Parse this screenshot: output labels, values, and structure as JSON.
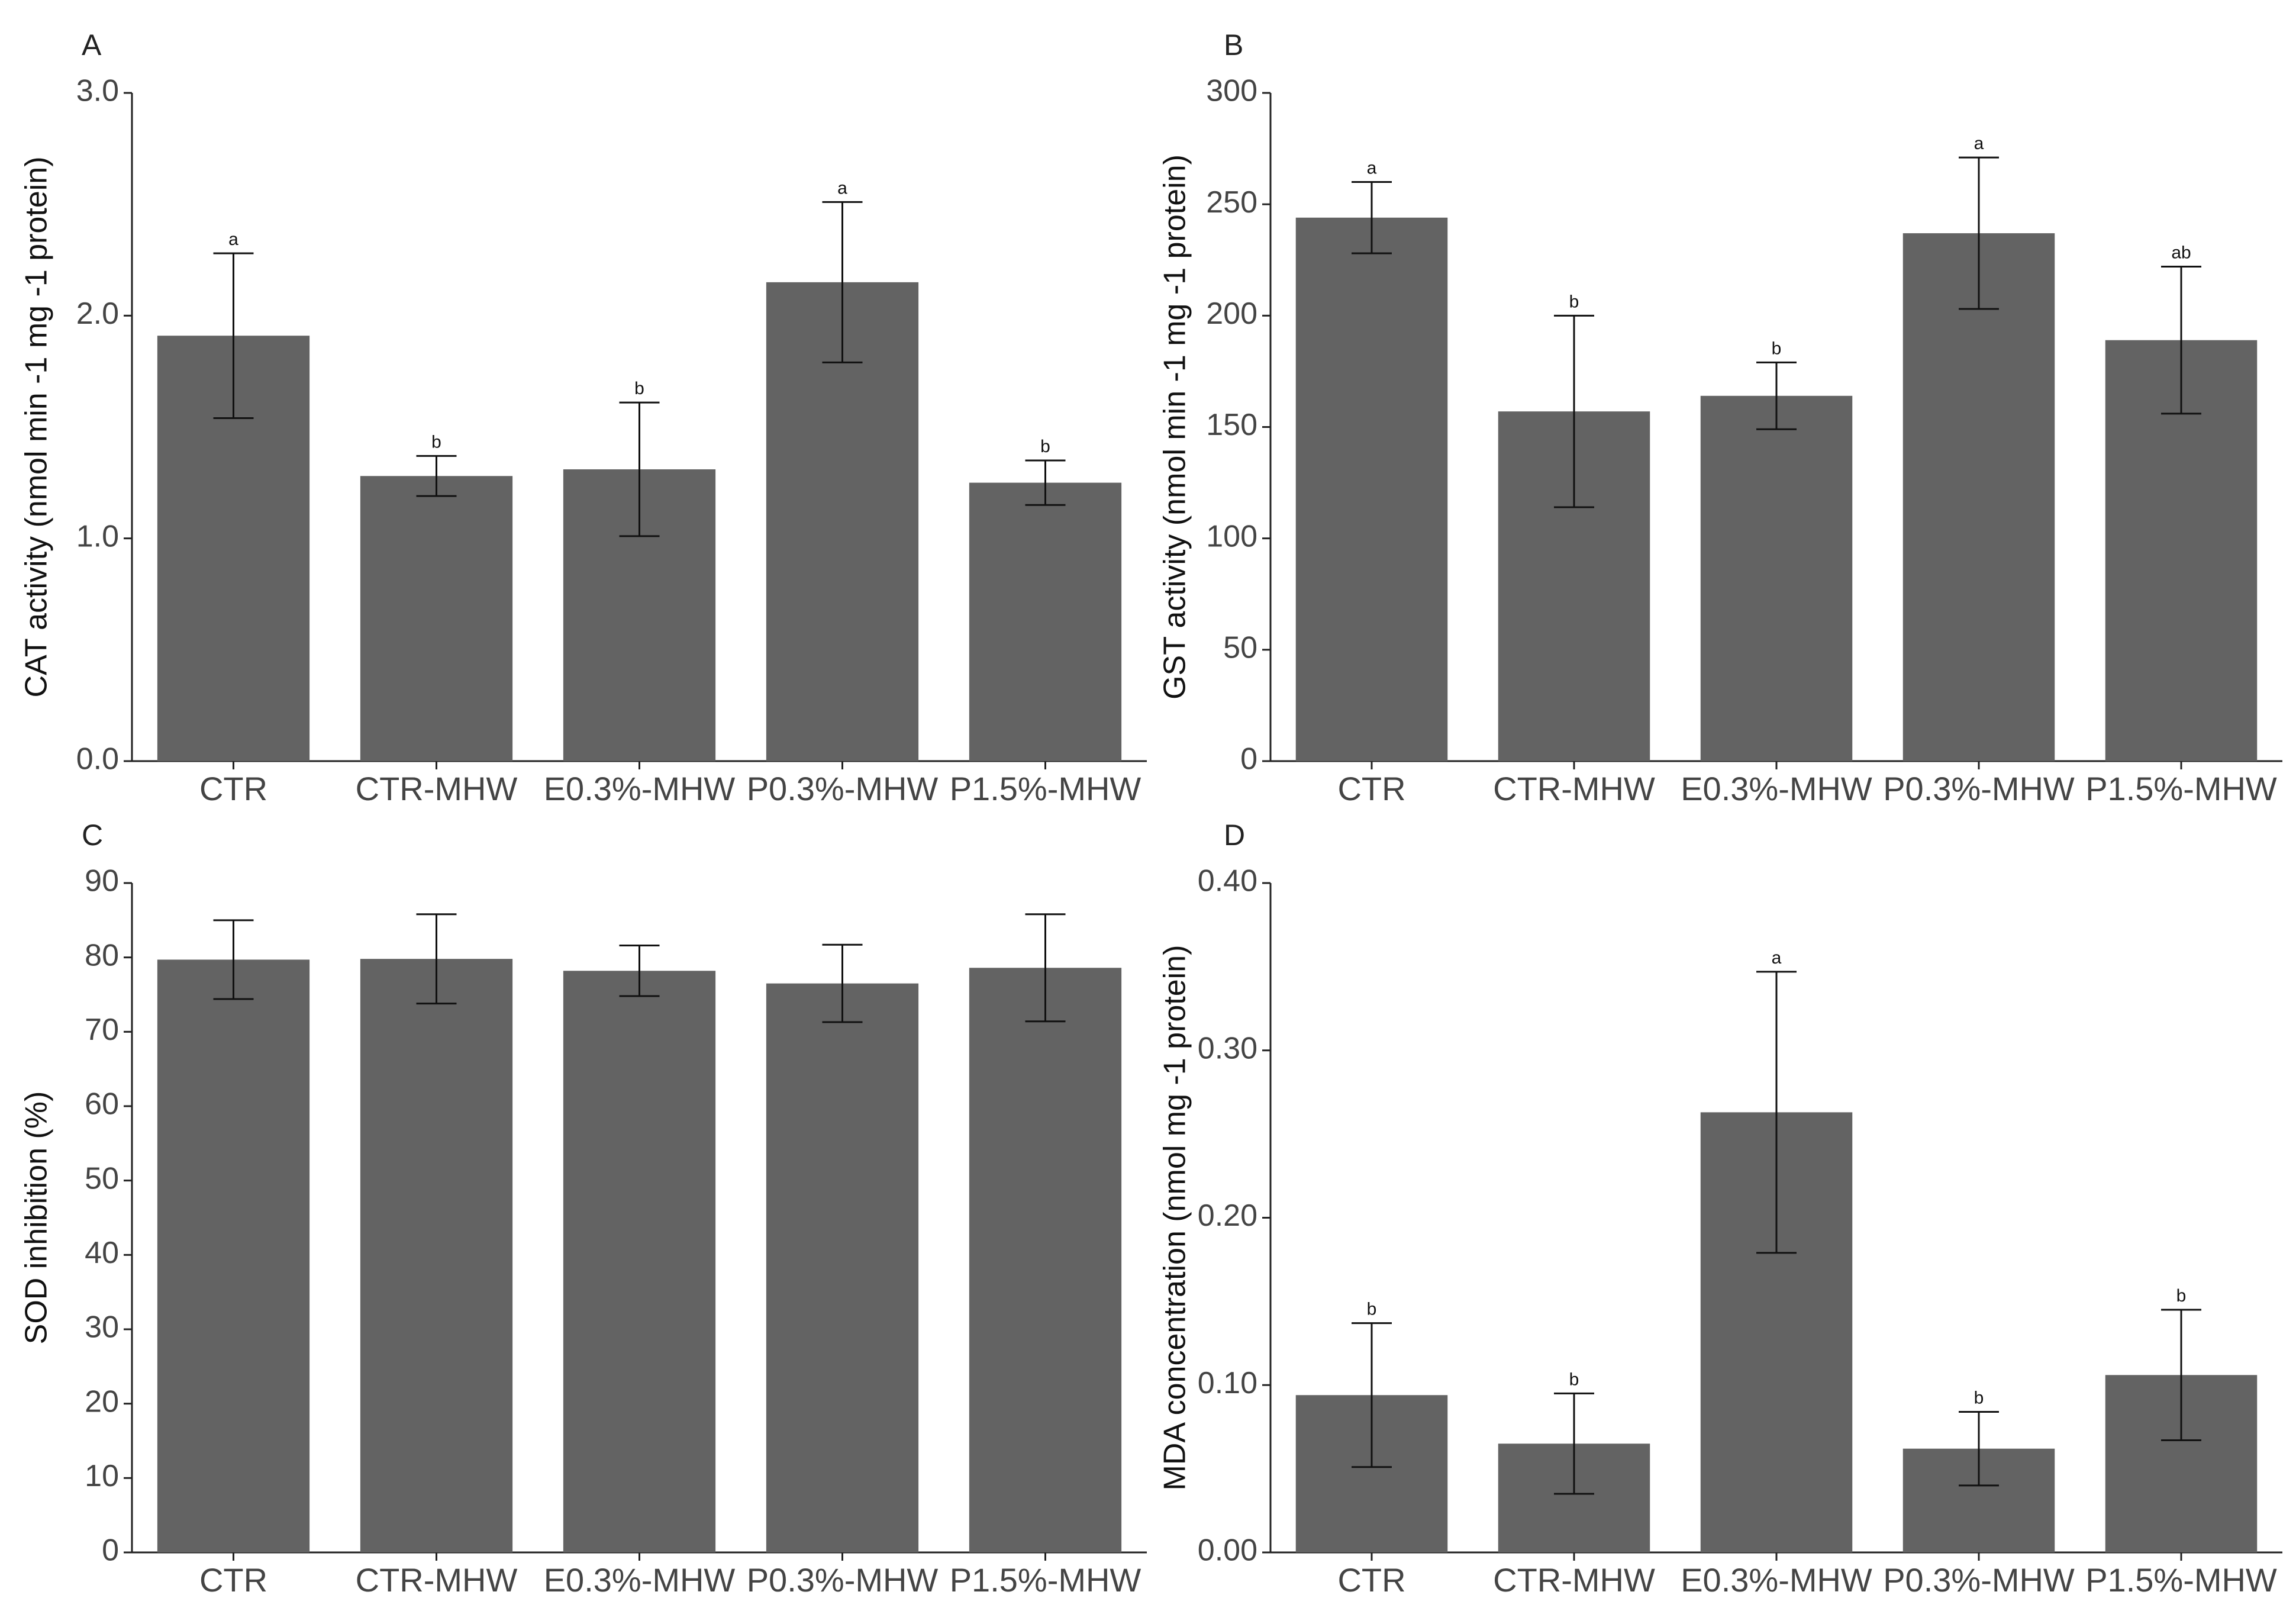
{
  "chart_data": [
    {
      "panel": "A",
      "type": "bar",
      "ylabel": "CAT activity (nmol min -1 mg -1 protein)",
      "ylim": [
        0,
        3.0
      ],
      "yticks": [
        "0.0",
        "1.0",
        "2.0",
        "3.0"
      ],
      "categories": [
        "CTR",
        "CTR-MHW",
        "E0.3%-MHW",
        "P0.3%-MHW",
        "P1.5%-MHW"
      ],
      "values": [
        1.91,
        1.28,
        1.31,
        2.15,
        1.25
      ],
      "errors": [
        0.37,
        0.09,
        0.3,
        0.36,
        0.1
      ],
      "significance": [
        "a",
        "b",
        "b",
        "a",
        "b"
      ]
    },
    {
      "panel": "B",
      "type": "bar",
      "ylabel": "GST activity (nmol min -1 mg -1 protein)",
      "ylim": [
        0,
        300
      ],
      "yticks": [
        "0",
        "50",
        "100",
        "150",
        "200",
        "250",
        "300"
      ],
      "categories": [
        "CTR",
        "CTR-MHW",
        "E0.3%-MHW",
        "P0.3%-MHW",
        "P1.5%-MHW"
      ],
      "values": [
        244,
        157,
        164,
        237,
        189
      ],
      "errors": [
        16,
        43,
        15,
        34,
        33
      ],
      "significance": [
        "a",
        "b",
        "b",
        "a",
        "ab"
      ]
    },
    {
      "panel": "C",
      "type": "bar",
      "ylabel": "SOD inhibition (%)",
      "ylim": [
        0,
        90
      ],
      "yticks": [
        "0",
        "10",
        "20",
        "30",
        "40",
        "50",
        "60",
        "70",
        "80",
        "90"
      ],
      "categories": [
        "CTR",
        "CTR-MHW",
        "E0.3%-MHW",
        "P0.3%-MHW",
        "P1.5%-MHW"
      ],
      "values": [
        79.7,
        79.8,
        78.2,
        76.5,
        78.6
      ],
      "errors": [
        5.3,
        6.0,
        3.4,
        5.2,
        7.2
      ],
      "significance": [
        "",
        "",
        "",
        "",
        ""
      ]
    },
    {
      "panel": "D",
      "type": "bar",
      "ylabel": "MDA concentration (nmol mg -1 protein)",
      "ylim": [
        0,
        0.4
      ],
      "yticks": [
        "0.00",
        "0.10",
        "0.20",
        "0.30",
        "0.40"
      ],
      "categories": [
        "CTR",
        "CTR-MHW",
        "E0.3%-MHW",
        "P0.3%-MHW",
        "P1.5%-MHW"
      ],
      "values": [
        0.094,
        0.065,
        0.263,
        0.062,
        0.106
      ],
      "errors": [
        0.043,
        0.03,
        0.084,
        0.022,
        0.039
      ],
      "significance": [
        "b",
        "b",
        "a",
        "b",
        "b"
      ]
    }
  ]
}
